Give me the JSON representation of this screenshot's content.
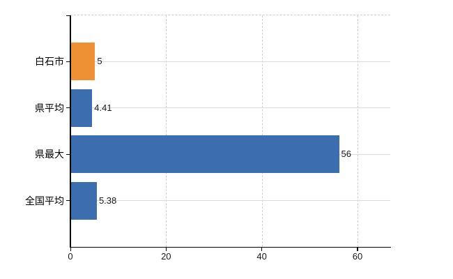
{
  "chart_data": {
    "type": "bar",
    "orientation": "horizontal",
    "title": "",
    "xlabel": "",
    "ylabel": "",
    "categories": [
      "白石市",
      "県平均",
      "県最大",
      "全国平均"
    ],
    "values": [
      5,
      4.41,
      56,
      5.38
    ],
    "value_labels": [
      "5",
      "4.41",
      "56",
      "5.38"
    ],
    "bar_colors": [
      "#EE9134",
      "#3C6EAF",
      "#3C6EAF",
      "#3C6EAF"
    ],
    "x_ticks": [
      0,
      20,
      40,
      60
    ],
    "x_tick_labels": [
      "0",
      "20",
      "40",
      "60"
    ],
    "xlim": [
      0,
      66.85
    ],
    "grid": true,
    "legend": false,
    "colors": {
      "orange": "#EE9134",
      "blue": "#3C6EAF",
      "axis": "#000000",
      "grid_horizontal": "#d9ddd6",
      "grid_vertical": "#d5ccd3",
      "text": "#1a1a1a",
      "background": "#ffffff"
    }
  }
}
